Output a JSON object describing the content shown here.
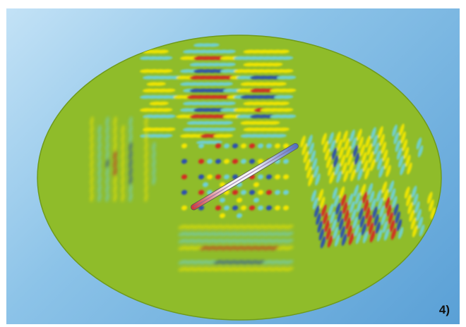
{
  "figure": {
    "label": "4)",
    "background_colors": [
      "#c3e2f6",
      "#5aa0d6"
    ],
    "disk_color": "#8fbc2a",
    "wave_colors": {
      "positive_strong": "#d42a24",
      "positive": "#f2e600",
      "negative": "#6fd0d6",
      "negative_strong": "#2a4fb0"
    },
    "probe_colors": [
      "#cc3333",
      "#ffffff",
      "#4a6fbd"
    ]
  }
}
